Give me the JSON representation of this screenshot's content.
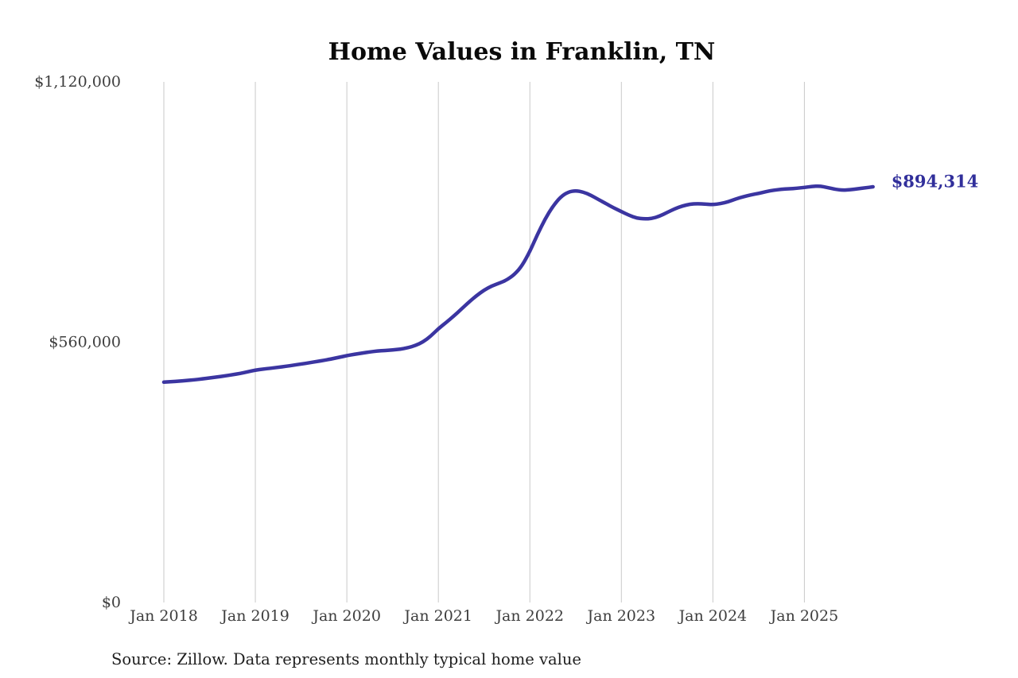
{
  "title": "Home Values in Franklin, TN",
  "source_note": "Source: Zillow. Data represents monthly typical home value",
  "end_value_label": "$894,314",
  "colors": {
    "line": "#3b35a1",
    "end_label": "#312f9b",
    "grid": "#c9c9c9",
    "axis_text": "#3d3d3d",
    "title_text": "#0a0a0a",
    "source_text": "#1f1f1f",
    "background": "#ffffff"
  },
  "chart_data": {
    "type": "line",
    "title": "Home Values in Franklin, TN",
    "unit": "USD",
    "frequency": "monthly",
    "x_start": "2018-01",
    "x_end": "2025-10",
    "x_tick_labels": [
      "Jan 2018",
      "Jan 2019",
      "Jan 2020",
      "Jan 2021",
      "Jan 2022",
      "Jan 2023",
      "Jan 2024",
      "Jan 2025"
    ],
    "y_ticks": [
      0,
      560000,
      1120000
    ],
    "y_tick_labels": [
      "$0",
      "$560,000",
      "$1,120,000"
    ],
    "ylim": [
      0,
      1120000
    ],
    "grid": "vertical",
    "legend": "none",
    "end_value": 894314,
    "series": [
      {
        "name": "Typical home value (Franklin, TN)",
        "months": [
          "2018-01",
          "2018-02",
          "2018-03",
          "2018-04",
          "2018-05",
          "2018-06",
          "2018-07",
          "2018-08",
          "2018-09",
          "2018-10",
          "2018-11",
          "2018-12",
          "2019-01",
          "2019-02",
          "2019-03",
          "2019-04",
          "2019-05",
          "2019-06",
          "2019-07",
          "2019-08",
          "2019-09",
          "2019-10",
          "2019-11",
          "2019-12",
          "2020-01",
          "2020-02",
          "2020-03",
          "2020-04",
          "2020-05",
          "2020-06",
          "2020-07",
          "2020-08",
          "2020-09",
          "2020-10",
          "2020-11",
          "2020-12",
          "2021-01",
          "2021-02",
          "2021-03",
          "2021-04",
          "2021-05",
          "2021-06",
          "2021-07",
          "2021-08",
          "2021-09",
          "2021-10",
          "2021-11",
          "2021-12",
          "2022-01",
          "2022-02",
          "2022-03",
          "2022-04",
          "2022-05",
          "2022-06",
          "2022-07",
          "2022-08",
          "2022-09",
          "2022-10",
          "2022-11",
          "2022-12",
          "2023-01",
          "2023-02",
          "2023-03",
          "2023-04",
          "2023-05",
          "2023-06",
          "2023-07",
          "2023-08",
          "2023-09",
          "2023-10",
          "2023-11",
          "2023-12",
          "2024-01",
          "2024-02",
          "2024-03",
          "2024-04",
          "2024-05",
          "2024-06",
          "2024-07",
          "2024-08",
          "2024-09",
          "2024-10",
          "2024-11",
          "2024-12",
          "2025-01",
          "2025-02",
          "2025-03",
          "2025-04",
          "2025-05",
          "2025-06",
          "2025-07",
          "2025-08",
          "2025-09",
          "2025-10"
        ],
        "values": [
          474000,
          475000,
          476200,
          477500,
          479000,
          481000,
          483000,
          485200,
          487500,
          490000,
          492800,
          496200,
          500000,
          502000,
          504000,
          506000,
          508000,
          510500,
          513000,
          515500,
          518200,
          521000,
          524000,
          527500,
          531000,
          534000,
          536500,
          539000,
          541000,
          542200,
          543200,
          545000,
          548000,
          553000,
          560500,
          573000,
          589000,
          602000,
          616000,
          631000,
          646000,
          660000,
          672000,
          681000,
          687000,
          694000,
          706000,
          725000,
          755000,
          792000,
          825000,
          852000,
          872000,
          883000,
          886000,
          883000,
          876000,
          867000,
          858000,
          849000,
          841000,
          833000,
          827000,
          825000,
          826000,
          831000,
          839000,
          847000,
          853000,
          857000,
          858000,
          857000,
          856000,
          858000,
          862000,
          868000,
          873000,
          877000,
          880000,
          884000,
          887000,
          889000,
          890000,
          891000,
          893000,
          895000,
          896000,
          893000,
          889000,
          887000,
          888000,
          890000,
          892000,
          894314
        ]
      }
    ]
  }
}
